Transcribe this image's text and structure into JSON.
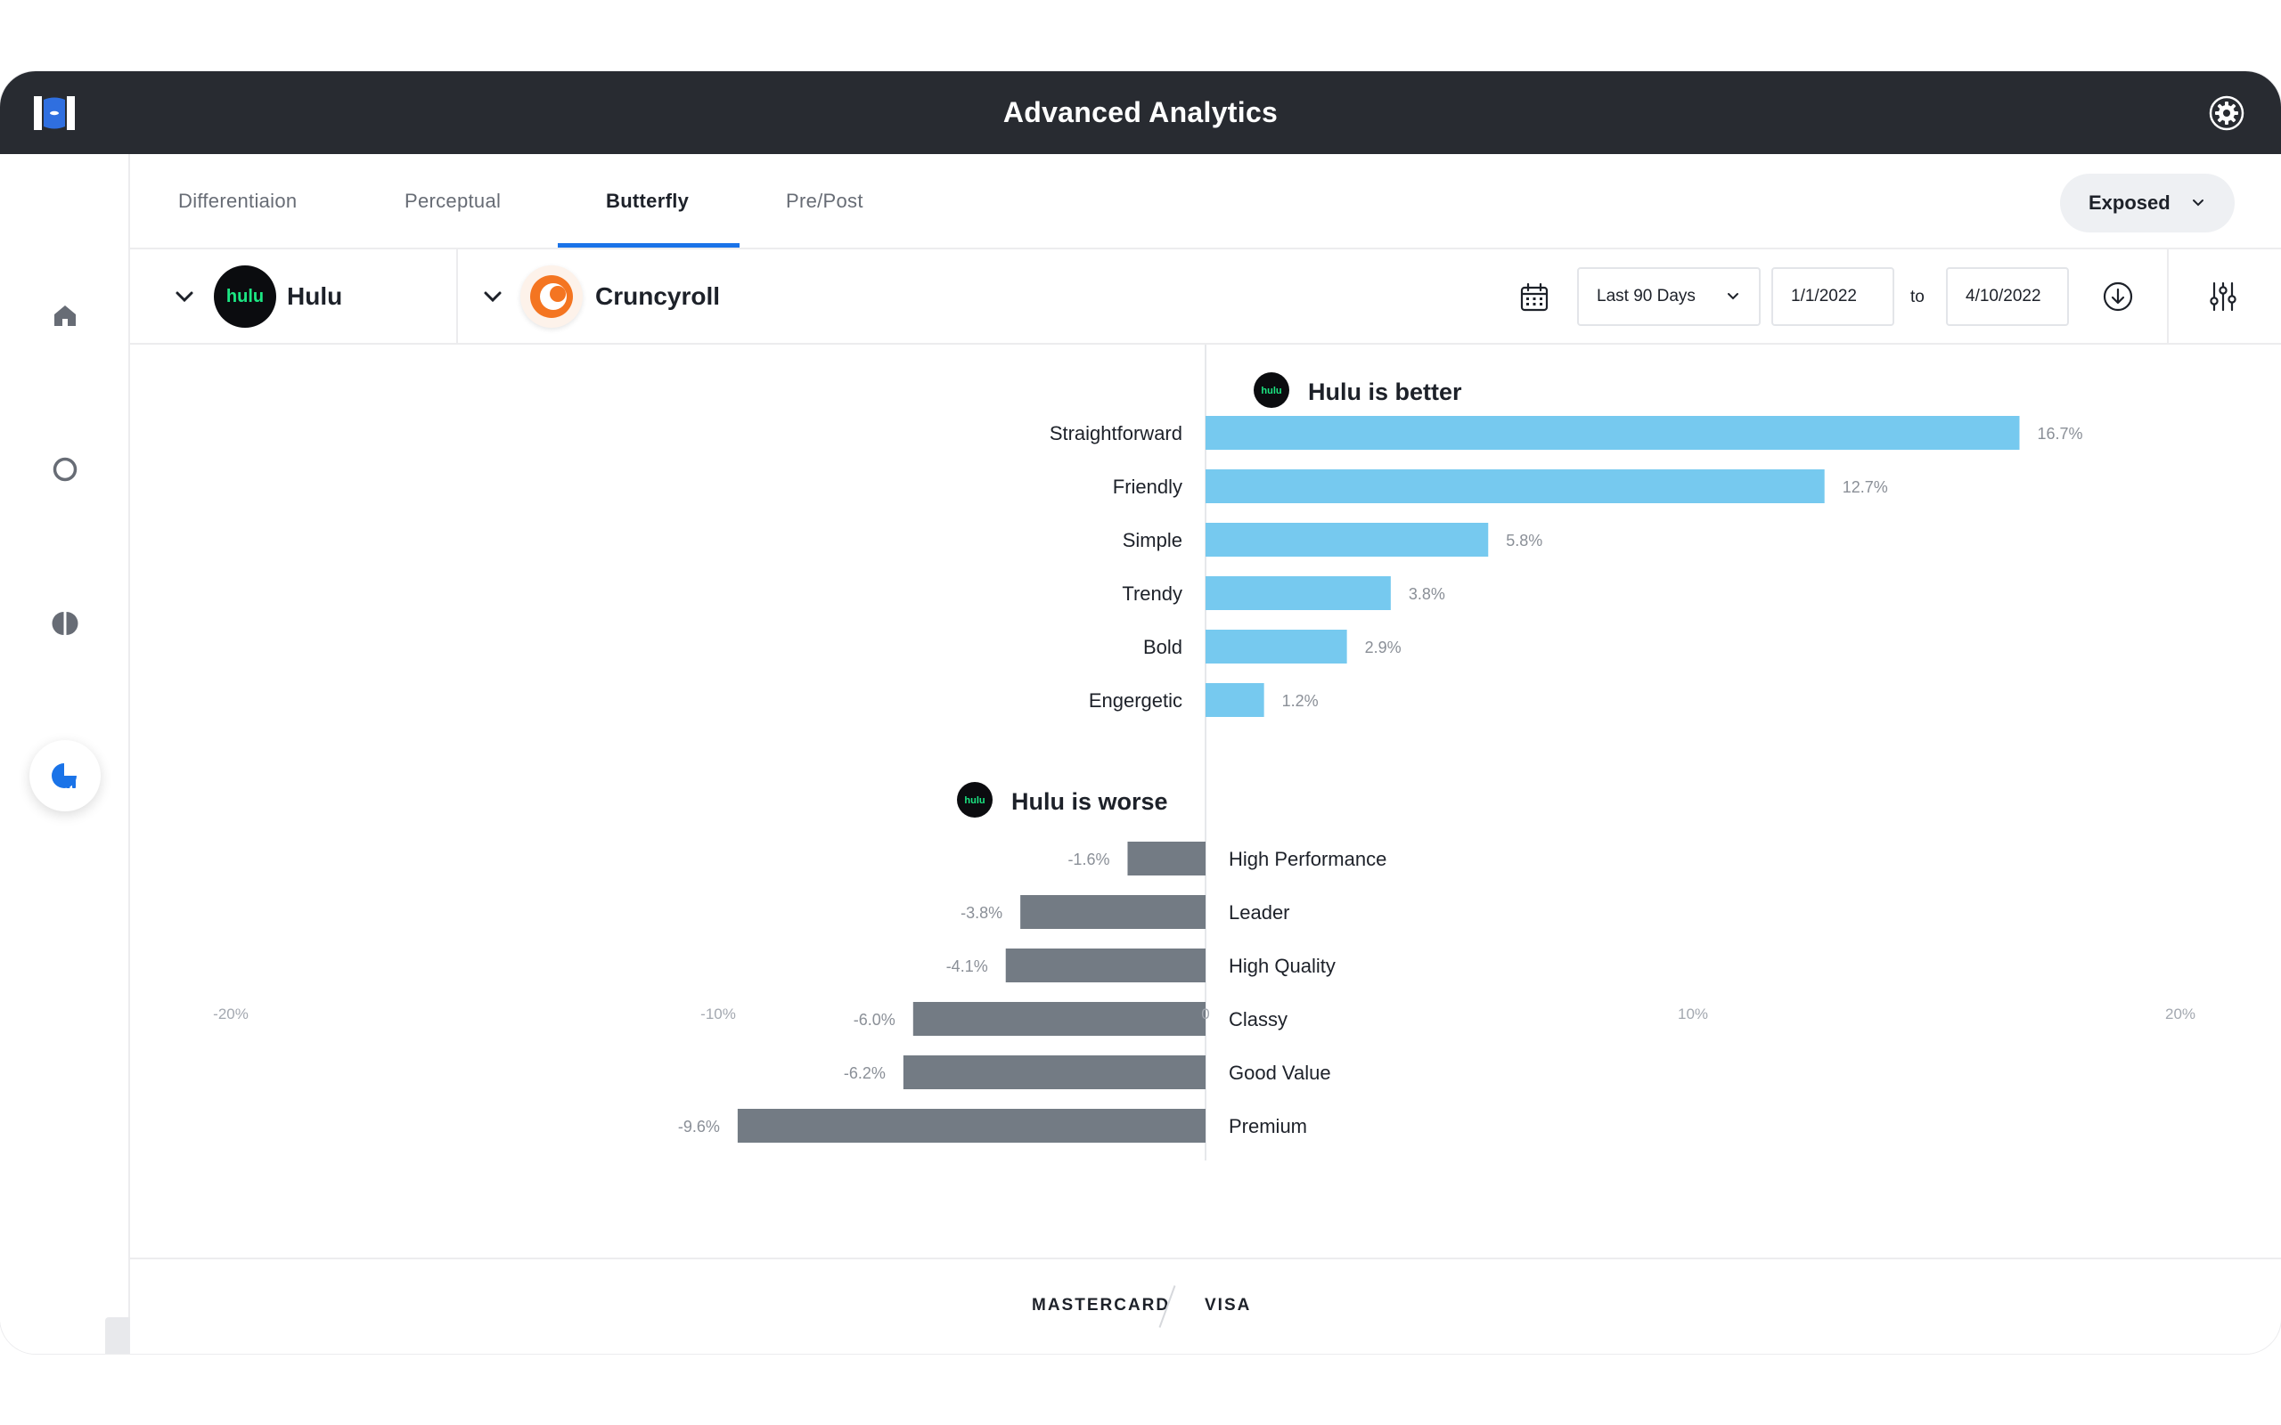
{
  "app": {
    "title": "Advanced Analytics",
    "accent_color": "#1a73e8",
    "titlebar_color": "#282b31"
  },
  "sidebar": {
    "items": [
      {
        "icon": "home-icon"
      },
      {
        "icon": "circle-icon"
      },
      {
        "icon": "half-circle-icon"
      },
      {
        "icon": "analytics-icon",
        "active": true
      }
    ]
  },
  "tabs": [
    {
      "label": "Differentiaion"
    },
    {
      "label": "Perceptual"
    },
    {
      "label": "Butterfly",
      "active": true
    },
    {
      "label": "Pre/Post"
    }
  ],
  "exposure_select": {
    "value": "Exposed"
  },
  "brands": {
    "primary": {
      "name": "Hulu",
      "logo_text": "hulu",
      "logo_color": "#1ce783",
      "logo_bg": "#0b0c0f"
    },
    "comparison": {
      "name": "Cruncyroll",
      "logo_color": "#f47521"
    }
  },
  "date_filter": {
    "range_label": "Last 90 Days",
    "start": "1/1/2022",
    "to_label": "to",
    "end": "4/10/2022"
  },
  "chart_data": {
    "type": "bar",
    "orientation": "horizontal",
    "better_title": "Hulu is better",
    "worse_title": "Hulu is worse",
    "better": {
      "categories": [
        "Straightforward",
        "Friendly",
        "Simple",
        "Trendy",
        "Bold",
        "Engergetic"
      ],
      "values": [
        16.7,
        12.7,
        5.8,
        3.8,
        2.9,
        1.2
      ],
      "value_labels": [
        "16.7%",
        "12.7%",
        "5.8%",
        "3.8%",
        "2.9%",
        "1.2%"
      ],
      "color": "#76c9ef"
    },
    "worse": {
      "categories": [
        "High Performance",
        "Leader",
        "High Quality",
        "Classy",
        "Good Value",
        "Premium"
      ],
      "values": [
        -1.6,
        -3.8,
        -4.1,
        -6.0,
        -6.2,
        -9.6
      ],
      "value_labels": [
        "-1.6%",
        "-3.8%",
        "-4.1%",
        "-6.0%",
        "-6.2%",
        "-9.6%"
      ],
      "color": "#737b84"
    },
    "x_ticks": [
      -20,
      -10,
      0,
      10,
      20
    ],
    "x_tick_labels": [
      "-20%",
      "-10%",
      "0",
      "10%",
      "20%"
    ],
    "xlim": [
      -20,
      20
    ]
  },
  "footer": {
    "tabs": [
      {
        "label": "MASTERCARD"
      },
      {
        "label": "VISA"
      }
    ]
  }
}
